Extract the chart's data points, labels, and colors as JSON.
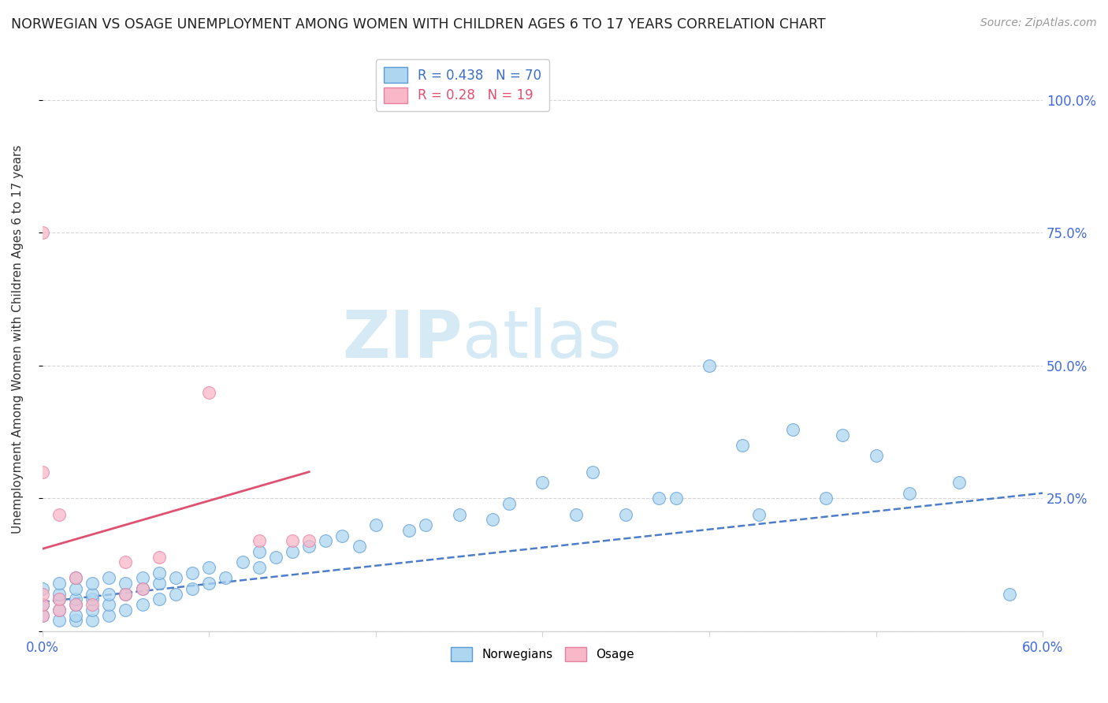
{
  "title": "NORWEGIAN VS OSAGE UNEMPLOYMENT AMONG WOMEN WITH CHILDREN AGES 6 TO 17 YEARS CORRELATION CHART",
  "source": "Source: ZipAtlas.com",
  "xlabel": "",
  "ylabel": "Unemployment Among Women with Children Ages 6 to 17 years",
  "xlim": [
    0.0,
    0.6
  ],
  "ylim": [
    0.0,
    1.1
  ],
  "xticks": [
    0.0,
    0.1,
    0.2,
    0.3,
    0.4,
    0.5,
    0.6
  ],
  "ytick_positions": [
    0.0,
    0.25,
    0.5,
    0.75,
    1.0
  ],
  "ytick_labels_right": [
    "",
    "25.0%",
    "50.0%",
    "75.0%",
    "100.0%"
  ],
  "norwegian_R": 0.438,
  "norwegian_N": 70,
  "osage_R": 0.28,
  "osage_N": 19,
  "norwegian_color": "#aed6f1",
  "osage_color": "#f9b8c8",
  "norwegian_edge_color": "#5b9bd5",
  "osage_edge_color": "#e87fa0",
  "norwegian_line_color": "#3a6fc4",
  "osage_line_color": "#e05070",
  "background_color": "#ffffff",
  "watermark_color": "#d5eaf5",
  "norwegian_x": [
    0.0,
    0.0,
    0.0,
    0.01,
    0.01,
    0.01,
    0.01,
    0.01,
    0.02,
    0.02,
    0.02,
    0.02,
    0.02,
    0.02,
    0.03,
    0.03,
    0.03,
    0.03,
    0.03,
    0.04,
    0.04,
    0.04,
    0.04,
    0.05,
    0.05,
    0.05,
    0.06,
    0.06,
    0.06,
    0.07,
    0.07,
    0.07,
    0.08,
    0.08,
    0.09,
    0.09,
    0.1,
    0.1,
    0.11,
    0.12,
    0.13,
    0.13,
    0.14,
    0.15,
    0.16,
    0.17,
    0.18,
    0.19,
    0.2,
    0.22,
    0.23,
    0.25,
    0.27,
    0.28,
    0.3,
    0.32,
    0.33,
    0.35,
    0.37,
    0.38,
    0.4,
    0.42,
    0.43,
    0.45,
    0.47,
    0.48,
    0.5,
    0.52,
    0.55,
    0.58
  ],
  "norwegian_y": [
    0.03,
    0.05,
    0.08,
    0.02,
    0.04,
    0.06,
    0.07,
    0.09,
    0.02,
    0.03,
    0.05,
    0.06,
    0.08,
    0.1,
    0.02,
    0.04,
    0.06,
    0.07,
    0.09,
    0.03,
    0.05,
    0.07,
    0.1,
    0.04,
    0.07,
    0.09,
    0.05,
    0.08,
    0.1,
    0.06,
    0.09,
    0.11,
    0.07,
    0.1,
    0.08,
    0.11,
    0.09,
    0.12,
    0.1,
    0.13,
    0.12,
    0.15,
    0.14,
    0.15,
    0.16,
    0.17,
    0.18,
    0.16,
    0.2,
    0.19,
    0.2,
    0.22,
    0.21,
    0.24,
    0.28,
    0.22,
    0.3,
    0.22,
    0.25,
    0.25,
    0.5,
    0.35,
    0.22,
    0.38,
    0.25,
    0.37,
    0.33,
    0.26,
    0.28,
    0.07
  ],
  "osage_x": [
    0.0,
    0.0,
    0.0,
    0.0,
    0.0,
    0.01,
    0.01,
    0.01,
    0.02,
    0.02,
    0.03,
    0.05,
    0.05,
    0.06,
    0.07,
    0.1,
    0.13,
    0.15,
    0.16
  ],
  "osage_y": [
    0.03,
    0.05,
    0.07,
    0.3,
    0.75,
    0.04,
    0.06,
    0.22,
    0.05,
    0.1,
    0.05,
    0.07,
    0.13,
    0.08,
    0.14,
    0.45,
    0.17,
    0.17,
    0.17
  ],
  "nor_trend_x": [
    0.0,
    0.6
  ],
  "nor_trend_y": [
    0.055,
    0.26
  ],
  "osa_trend_x": [
    0.0,
    0.16
  ],
  "osa_trend_y": [
    0.155,
    0.3
  ]
}
